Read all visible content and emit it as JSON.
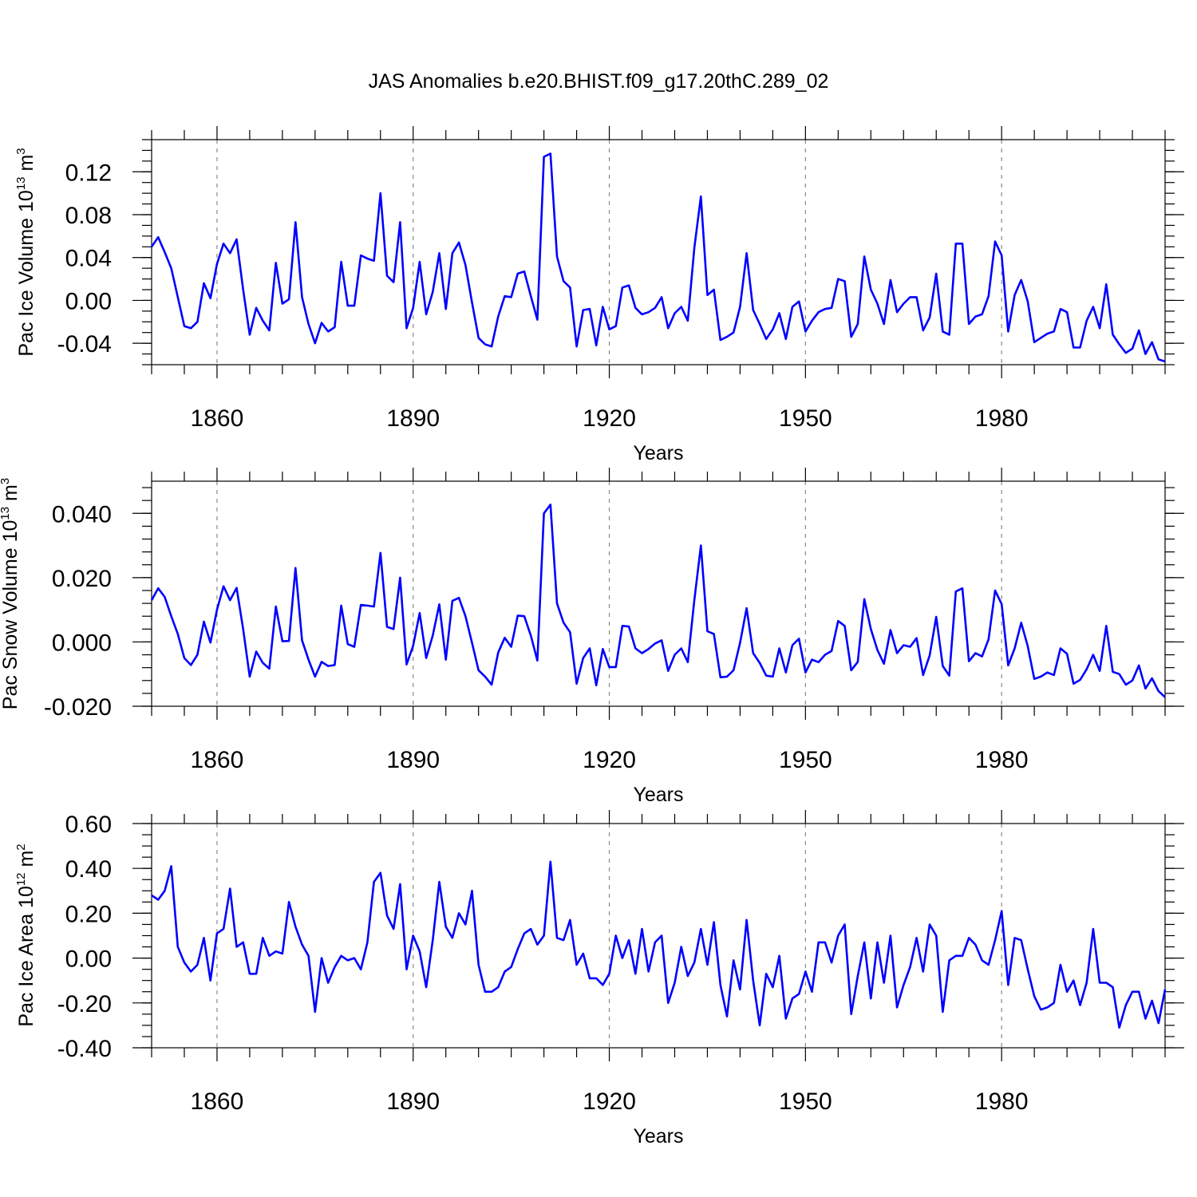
{
  "chart_data": {
    "type": "line",
    "title": "JAS Anomalies b.e20.BHIST.f09_g17.20thC.289_02",
    "x_start": 1850,
    "x_end": 2005,
    "xlim": [
      1850,
      2005
    ],
    "x_ticks": [
      "1860",
      "1890",
      "1920",
      "1950",
      "1980"
    ],
    "panels": [
      {
        "name": "ice-volume",
        "ylabel_base": "Pac Ice Volume 10",
        "ylabel_exp": "13",
        "ylabel_unit": " m",
        "ylabel_unit_exp": "3",
        "xlabel": "Years",
        "ylim": [
          -0.06,
          0.15
        ],
        "y_ticks": [
          "0.12",
          "0.08",
          "0.04",
          "0.00",
          "-0.04"
        ],
        "y_tick_values": [
          0.12,
          0.08,
          0.04,
          0.0,
          -0.04
        ],
        "minor_step": 0.01,
        "series": [
          {
            "name": "Pac Ice Volume",
            "color": "#0000ff",
            "values": [
              0.05,
              0.059,
              0.045,
              0.03,
              0.003,
              -0.024,
              -0.026,
              -0.02,
              0.016,
              0.002,
              0.034,
              0.053,
              0.044,
              0.057,
              0.01,
              -0.032,
              -0.007,
              -0.019,
              -0.028,
              0.035,
              -0.003,
              0.001,
              0.073,
              0.003,
              -0.022,
              -0.04,
              -0.021,
              -0.029,
              -0.025,
              0.036,
              -0.005,
              -0.005,
              0.042,
              0.039,
              0.037,
              0.1,
              0.023,
              0.017,
              0.073,
              -0.026,
              -0.007,
              0.036,
              -0.013,
              0.008,
              0.044,
              -0.008,
              0.044,
              0.054,
              0.033,
              -0.002,
              -0.035,
              -0.041,
              -0.043,
              -0.015,
              0.004,
              0.003,
              0.025,
              0.027,
              0.004,
              -0.018,
              0.134,
              0.137,
              0.041,
              0.018,
              0.012,
              -0.043,
              -0.009,
              -0.008,
              -0.042,
              -0.006,
              -0.027,
              -0.024,
              0.012,
              0.014,
              -0.007,
              -0.013,
              -0.011,
              -0.007,
              0.003,
              -0.026,
              -0.012,
              -0.006,
              -0.019,
              0.049,
              0.097,
              0.005,
              0.01,
              -0.037,
              -0.034,
              -0.03,
              -0.006,
              0.044,
              -0.009,
              -0.022,
              -0.036,
              -0.027,
              -0.012,
              -0.036,
              -0.006,
              -0.001,
              -0.029,
              -0.019,
              -0.011,
              -0.008,
              -0.007,
              0.02,
              0.018,
              -0.034,
              -0.022,
              0.041,
              0.01,
              -0.003,
              -0.022,
              0.019,
              -0.011,
              -0.003,
              0.003,
              0.003,
              -0.028,
              -0.016,
              0.025,
              -0.029,
              -0.032,
              0.053,
              0.053,
              -0.022,
              -0.015,
              -0.013,
              0.004,
              0.055,
              0.042,
              -0.029,
              0.005,
              0.019,
              -0.001,
              -0.039,
              -0.035,
              -0.031,
              -0.029,
              -0.008,
              -0.011,
              -0.044,
              -0.044,
              -0.019,
              -0.006,
              -0.026,
              0.015,
              -0.032,
              -0.041,
              -0.049,
              -0.045,
              -0.028,
              -0.05,
              -0.039,
              -0.055,
              -0.057
            ]
          }
        ]
      },
      {
        "name": "snow-volume",
        "ylabel_base": "Pac Snow Volume 10",
        "ylabel_exp": "13",
        "ylabel_unit": " m",
        "ylabel_unit_exp": "3",
        "xlabel": "Years",
        "ylim": [
          -0.02,
          0.05
        ],
        "y_ticks": [
          "0.040",
          "0.020",
          "0.000",
          "-0.020"
        ],
        "y_tick_values": [
          0.04,
          0.02,
          0.0,
          -0.02
        ],
        "minor_step": 0.004,
        "series": [
          {
            "name": "Pac Snow Volume",
            "color": "#0000ff",
            "values": [
              0.013,
              0.0167,
              0.014,
              0.008,
              0.0025,
              -0.005,
              -0.0072,
              -0.004,
              0.0063,
              -0.0002,
              0.01,
              0.0173,
              0.013,
              0.0168,
              0.004,
              -0.0108,
              -0.003,
              -0.0065,
              -0.0083,
              0.011,
              0.0002,
              0.0003,
              0.023,
              0.0005,
              -0.0055,
              -0.0108,
              -0.0062,
              -0.0075,
              -0.0072,
              0.0113,
              -0.0007,
              -0.0015,
              0.0115,
              0.0113,
              0.011,
              0.0277,
              0.0047,
              0.004,
              0.02,
              -0.007,
              -0.0012,
              0.009,
              -0.005,
              0.002,
              0.0117,
              -0.0055,
              0.0128,
              0.0137,
              0.008,
              -0.0003,
              -0.0088,
              -0.0108,
              -0.0133,
              -0.0033,
              0.0013,
              -0.0015,
              0.0082,
              0.008,
              0.002,
              -0.0058,
              0.04,
              0.0427,
              0.012,
              0.006,
              0.003,
              -0.013,
              -0.005,
              -0.002,
              -0.0135,
              -0.0022,
              -0.0078,
              -0.0078,
              0.005,
              0.0048,
              -0.002,
              -0.0035,
              -0.0022,
              -0.0005,
              0.0005,
              -0.009,
              -0.004,
              -0.002,
              -0.0063,
              0.013,
              0.03,
              0.0033,
              0.0025,
              -0.011,
              -0.0108,
              -0.0088,
              -0.0003,
              0.0105,
              -0.0035,
              -0.0065,
              -0.0105,
              -0.0108,
              -0.002,
              -0.0095,
              -0.001,
              0.001,
              -0.0095,
              -0.0055,
              -0.0063,
              -0.004,
              -0.0028,
              0.0065,
              0.005,
              -0.0088,
              -0.0062,
              0.0133,
              0.004,
              -0.0025,
              -0.0068,
              0.0037,
              -0.0035,
              -0.001,
              -0.0015,
              0.0012,
              -0.0103,
              -0.0042,
              0.0078,
              -0.0075,
              -0.0105,
              0.0157,
              0.0167,
              -0.006,
              -0.0035,
              -0.0045,
              0.0008,
              0.016,
              0.0118,
              -0.0073,
              -0.002,
              0.006,
              -0.0013,
              -0.0115,
              -0.0108,
              -0.0095,
              -0.0103,
              -0.002,
              -0.0037,
              -0.013,
              -0.0118,
              -0.0085,
              -0.004,
              -0.009,
              0.005,
              -0.0093,
              -0.01,
              -0.0133,
              -0.012,
              -0.0073,
              -0.0145,
              -0.0113,
              -0.0153,
              -0.0172
            ]
          }
        ]
      },
      {
        "name": "ice-area",
        "ylabel_base": "Pac Ice Area 10",
        "ylabel_exp": "12",
        "ylabel_unit": " m",
        "ylabel_unit_exp": "2",
        "xlabel": "Years",
        "ylim": [
          -0.4,
          0.6
        ],
        "y_ticks": [
          "0.60",
          "0.40",
          "0.20",
          "0.00",
          "-0.20",
          "-0.40"
        ],
        "y_tick_values": [
          0.6,
          0.4,
          0.2,
          0.0,
          -0.2,
          -0.4
        ],
        "minor_step": 0.05,
        "series": [
          {
            "name": "Pac Ice Area",
            "color": "#0000ff",
            "values": [
              0.28,
              0.26,
              0.3,
              0.41,
              0.05,
              -0.02,
              -0.06,
              -0.03,
              0.09,
              -0.1,
              0.11,
              0.13,
              0.31,
              0.05,
              0.07,
              -0.07,
              -0.07,
              0.09,
              0.01,
              0.03,
              0.02,
              0.25,
              0.14,
              0.06,
              0.01,
              -0.24,
              0.0,
              -0.11,
              -0.04,
              0.01,
              -0.01,
              0.0,
              -0.05,
              0.07,
              0.34,
              0.38,
              0.19,
              0.13,
              0.33,
              -0.05,
              0.1,
              0.03,
              -0.13,
              0.08,
              0.34,
              0.14,
              0.09,
              0.2,
              0.15,
              0.3,
              -0.03,
              -0.15,
              -0.15,
              -0.13,
              -0.06,
              -0.04,
              0.04,
              0.11,
              0.13,
              0.06,
              0.1,
              0.43,
              0.09,
              0.08,
              0.17,
              -0.03,
              0.02,
              -0.09,
              -0.09,
              -0.12,
              -0.07,
              0.1,
              0.0,
              0.08,
              -0.07,
              0.13,
              -0.06,
              0.07,
              0.1,
              -0.2,
              -0.11,
              0.05,
              -0.08,
              -0.02,
              0.13,
              -0.03,
              0.16,
              -0.12,
              -0.26,
              -0.01,
              -0.14,
              0.17,
              -0.1,
              -0.3,
              -0.07,
              -0.13,
              0.01,
              -0.27,
              -0.18,
              -0.16,
              -0.06,
              -0.15,
              0.07,
              0.07,
              -0.02,
              0.1,
              0.15,
              -0.25,
              -0.08,
              0.07,
              -0.18,
              0.07,
              -0.11,
              0.1,
              -0.22,
              -0.12,
              -0.04,
              0.09,
              -0.06,
              0.15,
              0.1,
              -0.24,
              -0.01,
              0.01,
              0.01,
              0.09,
              0.06,
              -0.01,
              -0.03,
              0.08,
              0.21,
              -0.12,
              0.09,
              0.08,
              -0.05,
              -0.17,
              -0.23,
              -0.22,
              -0.2,
              -0.03,
              -0.15,
              -0.1,
              -0.21,
              -0.11,
              0.13,
              -0.11,
              -0.11,
              -0.13,
              -0.31,
              -0.21,
              -0.15,
              -0.15,
              -0.27,
              -0.19,
              -0.29,
              -0.14
            ]
          }
        ]
      }
    ]
  }
}
